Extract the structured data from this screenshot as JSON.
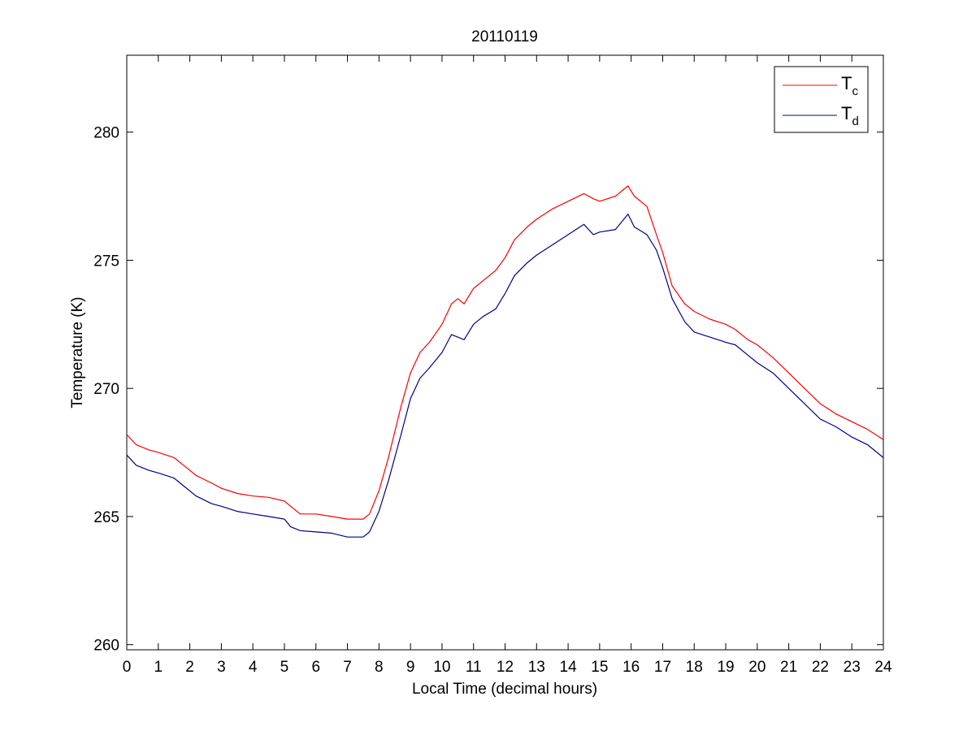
{
  "chart_data": {
    "type": "line",
    "title": "20110119",
    "xlabel": "Local Time (decimal hours)",
    "ylabel": "Temperature (K)",
    "xlim": [
      0,
      24
    ],
    "ylim": [
      259.8,
      283
    ],
    "xticks": [
      "0",
      "1",
      "2",
      "3",
      "4",
      "5",
      "6",
      "7",
      "8",
      "9",
      "10",
      "11",
      "12",
      "13",
      "14",
      "15",
      "16",
      "17",
      "18",
      "19",
      "20",
      "21",
      "22",
      "23",
      "24"
    ],
    "yticks": [
      "260",
      "265",
      "270",
      "275",
      "280"
    ],
    "grid": false,
    "legend_position": "top-right",
    "series": [
      {
        "name": "T",
        "subscript": "c",
        "color": "#ff0000",
        "x": [
          0,
          0.3,
          0.7,
          1,
          1.5,
          1.8,
          2.2,
          2.7,
          3,
          3.5,
          4,
          4.5,
          5,
          5.2,
          5.5,
          6,
          6.5,
          7,
          7.5,
          7.7,
          8,
          8.3,
          8.7,
          9,
          9.3,
          9.6,
          10,
          10.3,
          10.5,
          10.7,
          11,
          11.3,
          11.7,
          12,
          12.3,
          12.7,
          13,
          13.5,
          14,
          14.5,
          14.8,
          15,
          15.5,
          15.9,
          16.1,
          16.5,
          16.8,
          17,
          17.3,
          17.7,
          18,
          18.5,
          19,
          19.3,
          19.7,
          20,
          20.5,
          21,
          21.5,
          22,
          22.5,
          23,
          23.5,
          24
        ],
        "y": [
          268.2,
          267.8,
          267.6,
          267.5,
          267.3,
          267.0,
          266.6,
          266.3,
          266.1,
          265.9,
          265.8,
          265.75,
          265.6,
          265.4,
          265.1,
          265.1,
          265.0,
          264.9,
          264.9,
          265.1,
          266.0,
          267.3,
          269.3,
          270.6,
          271.4,
          271.8,
          272.5,
          273.3,
          273.5,
          273.3,
          273.9,
          274.2,
          274.6,
          275.1,
          275.8,
          276.3,
          276.6,
          277.0,
          277.3,
          277.6,
          277.4,
          277.3,
          277.5,
          277.9,
          277.5,
          277.1,
          276.0,
          275.3,
          274.0,
          273.3,
          273.0,
          272.7,
          272.5,
          272.3,
          271.9,
          271.7,
          271.2,
          270.6,
          270.0,
          269.4,
          269.0,
          268.7,
          268.4,
          268.0
        ]
      },
      {
        "name": "T",
        "subscript": "d",
        "color": "#00008b",
        "x": [
          0,
          0.3,
          0.7,
          1,
          1.5,
          1.8,
          2.2,
          2.7,
          3,
          3.5,
          4,
          4.5,
          5,
          5.2,
          5.5,
          6,
          6.5,
          7,
          7.5,
          7.7,
          8,
          8.3,
          8.7,
          9,
          9.3,
          9.6,
          10,
          10.3,
          10.5,
          10.7,
          11,
          11.3,
          11.7,
          12,
          12.3,
          12.7,
          13,
          13.5,
          14,
          14.5,
          14.8,
          15,
          15.5,
          15.9,
          16.1,
          16.5,
          16.8,
          17,
          17.3,
          17.7,
          18,
          18.5,
          19,
          19.3,
          19.7,
          20,
          20.5,
          21,
          21.5,
          22,
          22.5,
          23,
          23.5,
          24
        ],
        "y": [
          267.4,
          267.0,
          266.8,
          266.7,
          266.5,
          266.2,
          265.8,
          265.5,
          265.4,
          265.2,
          265.1,
          265.0,
          264.9,
          264.6,
          264.45,
          264.4,
          264.35,
          264.2,
          264.2,
          264.4,
          265.2,
          266.4,
          268.2,
          269.6,
          270.4,
          270.8,
          271.4,
          272.1,
          272.0,
          271.9,
          272.5,
          272.8,
          273.1,
          273.7,
          274.4,
          274.9,
          275.2,
          275.6,
          276.0,
          276.4,
          276.0,
          276.1,
          276.2,
          276.8,
          276.3,
          276.0,
          275.4,
          274.7,
          273.5,
          272.6,
          272.2,
          272.0,
          271.8,
          271.7,
          271.3,
          271.0,
          270.6,
          270.0,
          269.4,
          268.8,
          268.5,
          268.1,
          267.8,
          267.3
        ]
      }
    ]
  }
}
